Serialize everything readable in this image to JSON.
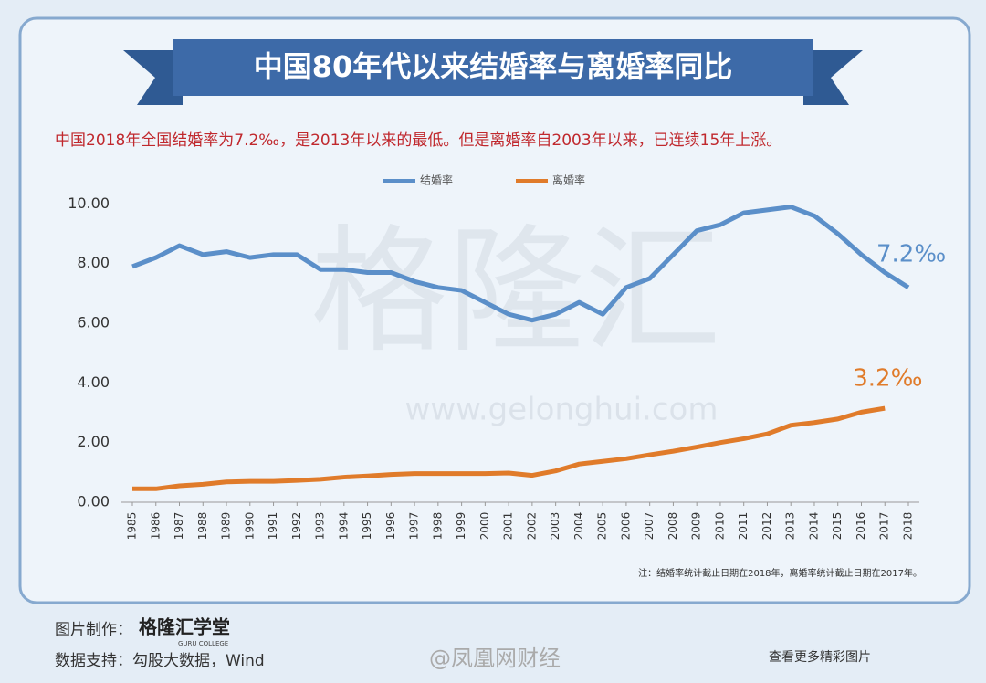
{
  "chart_data": {
    "type": "line",
    "title": "中国80年代以来结婚率与离婚率同比",
    "subtitle": "中国2018年全国结婚率为7.2‰，是2013年以来的最低。但是离婚率自2003年以来，已连续15年上涨。",
    "categories": [
      "1985",
      "1986",
      "1987",
      "1988",
      "1989",
      "1990",
      "1991",
      "1992",
      "1993",
      "1994",
      "1995",
      "1996",
      "1997",
      "1998",
      "1999",
      "2000",
      "2001",
      "2002",
      "2003",
      "2004",
      "2005",
      "2006",
      "2007",
      "2008",
      "2009",
      "2010",
      "2011",
      "2012",
      "2013",
      "2014",
      "2015",
      "2016",
      "2017",
      "2018"
    ],
    "series": [
      {
        "name": "结婚率",
        "color": "#5b8fc9",
        "end_label": "7.2‰",
        "values": [
          7.9,
          8.2,
          8.6,
          8.3,
          8.4,
          8.2,
          8.3,
          8.3,
          7.8,
          7.8,
          7.7,
          7.7,
          7.4,
          7.2,
          7.1,
          6.7,
          6.3,
          6.1,
          6.3,
          6.7,
          6.3,
          7.2,
          7.5,
          8.3,
          9.1,
          9.3,
          9.7,
          9.8,
          9.9,
          9.6,
          9.0,
          8.3,
          7.7,
          7.2
        ]
      },
      {
        "name": "离婚率",
        "color": "#e07b2a",
        "end_label": "3.2‰",
        "values": [
          0.45,
          0.45,
          0.55,
          0.6,
          0.68,
          0.7,
          0.7,
          0.73,
          0.77,
          0.84,
          0.88,
          0.93,
          0.96,
          0.96,
          0.96,
          0.96,
          0.98,
          0.9,
          1.05,
          1.28,
          1.37,
          1.46,
          1.59,
          1.71,
          1.85,
          2.0,
          2.13,
          2.29,
          2.58,
          2.67,
          2.79,
          3.02,
          3.15,
          null
        ]
      }
    ],
    "ylim": [
      0,
      10.5
    ],
    "yticks": [
      {
        "value": 0,
        "label": "0.00"
      },
      {
        "value": 2,
        "label": "2.00"
      },
      {
        "value": 4,
        "label": "4.00"
      },
      {
        "value": 6,
        "label": "6.00"
      },
      {
        "value": 8,
        "label": "8.00"
      },
      {
        "value": 10,
        "label": "10.00"
      }
    ],
    "grid": false,
    "legend": "top",
    "note": "注：结婚率统计截止日期在2018年，离婚率统计截止日期在2017年。",
    "watermark": "格隆汇",
    "watermark_url": "www.gelonghui.com",
    "footer": {
      "maker_label": "图片制作：",
      "maker": "格隆汇学堂",
      "maker_en": "GURU COLLEGE",
      "source": "数据支持：勾股大数据，Wind",
      "weibo": "@凤凰网财经",
      "more": "查看更多精彩图片"
    }
  }
}
